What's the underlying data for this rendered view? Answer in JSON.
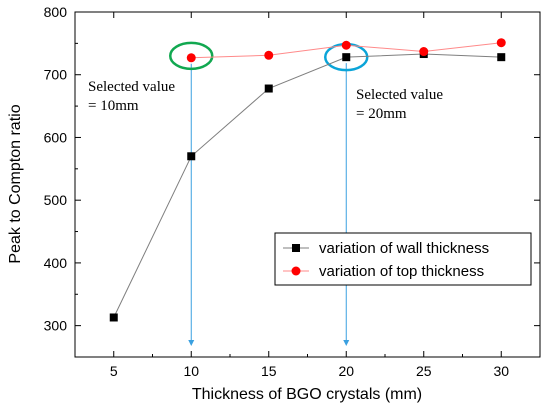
{
  "chart_data": {
    "type": "line",
    "xlabel": "Thickness of BGO crystals (mm)",
    "ylabel": "Peak to Compton ratio",
    "xlim": [
      2.5,
      32.5
    ],
    "ylim": [
      250,
      800
    ],
    "x_ticks": [
      5,
      10,
      15,
      20,
      25,
      30
    ],
    "x_tick_labels": [
      "5",
      "10",
      "15",
      "20",
      "25",
      "30"
    ],
    "y_ticks": [
      300,
      400,
      500,
      600,
      700,
      800
    ],
    "y_tick_labels": [
      "300",
      "400",
      "500",
      "600",
      "700",
      "800"
    ],
    "legend_position": "lower-right",
    "series": [
      {
        "name": "variation of wall thickness",
        "color": "#000000",
        "marker": "square",
        "x": [
          5,
          10,
          15,
          20,
          25,
          30
        ],
        "y": [
          313,
          570,
          678,
          728,
          733,
          728
        ]
      },
      {
        "name": "variation of top thickness",
        "color": "#ff0000",
        "marker": "circle",
        "x": [
          10,
          15,
          20,
          25,
          30
        ],
        "y": [
          727,
          731,
          747,
          737,
          751
        ]
      }
    ],
    "annotations": [
      {
        "lines": [
          "Selected value",
          "= 10mm"
        ],
        "arrow_x": 10,
        "arrow_from_y": 727,
        "arrow_to_y": 250,
        "circle_color": "#11a850",
        "circle_x": 10,
        "circle_y": 730
      },
      {
        "lines": [
          "Selected value",
          "= 20mm"
        ],
        "arrow_x": 20,
        "arrow_from_y": 728,
        "arrow_to_y": 250,
        "circle_color": "#0aa4d8",
        "circle_x": 20,
        "circle_y": 728
      }
    ],
    "arrow_color": "#3aa0e0",
    "grid": false
  }
}
